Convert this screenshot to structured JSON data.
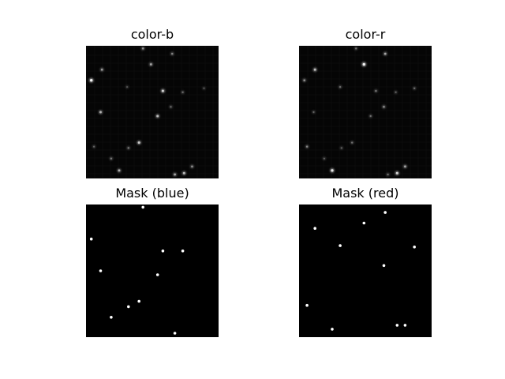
{
  "chart_data": [
    {
      "type": "image",
      "title": "color-b",
      "background": "#050505",
      "faint_grid": true,
      "spots": [
        {
          "x": 0.43,
          "y": 0.02,
          "v": 0.5
        },
        {
          "x": 0.65,
          "y": 0.06,
          "v": 0.45
        },
        {
          "x": 0.12,
          "y": 0.18,
          "v": 0.55
        },
        {
          "x": 0.49,
          "y": 0.14,
          "v": 0.6
        },
        {
          "x": 0.04,
          "y": 0.26,
          "v": 0.95
        },
        {
          "x": 0.31,
          "y": 0.31,
          "v": 0.25
        },
        {
          "x": 0.58,
          "y": 0.34,
          "v": 0.8
        },
        {
          "x": 0.73,
          "y": 0.35,
          "v": 0.35
        },
        {
          "x": 0.89,
          "y": 0.32,
          "v": 0.25
        },
        {
          "x": 0.11,
          "y": 0.5,
          "v": 0.65
        },
        {
          "x": 0.54,
          "y": 0.53,
          "v": 0.7
        },
        {
          "x": 0.64,
          "y": 0.46,
          "v": 0.35
        },
        {
          "x": 0.06,
          "y": 0.76,
          "v": 0.3
        },
        {
          "x": 0.32,
          "y": 0.77,
          "v": 0.4
        },
        {
          "x": 0.4,
          "y": 0.73,
          "v": 0.75
        },
        {
          "x": 0.19,
          "y": 0.85,
          "v": 0.4
        },
        {
          "x": 0.25,
          "y": 0.94,
          "v": 0.65
        },
        {
          "x": 0.67,
          "y": 0.97,
          "v": 0.6
        },
        {
          "x": 0.74,
          "y": 0.96,
          "v": 0.7
        },
        {
          "x": 0.8,
          "y": 0.91,
          "v": 0.5
        }
      ]
    },
    {
      "type": "image",
      "title": "color-r",
      "background": "#050505",
      "faint_grid": true,
      "spots": [
        {
          "x": 0.43,
          "y": 0.02,
          "v": 0.35
        },
        {
          "x": 0.65,
          "y": 0.06,
          "v": 0.6
        },
        {
          "x": 0.49,
          "y": 0.14,
          "v": 0.95
        },
        {
          "x": 0.12,
          "y": 0.18,
          "v": 0.7
        },
        {
          "x": 0.04,
          "y": 0.26,
          "v": 0.5
        },
        {
          "x": 0.31,
          "y": 0.31,
          "v": 0.35
        },
        {
          "x": 0.58,
          "y": 0.34,
          "v": 0.4
        },
        {
          "x": 0.73,
          "y": 0.35,
          "v": 0.3
        },
        {
          "x": 0.87,
          "y": 0.32,
          "v": 0.35
        },
        {
          "x": 0.11,
          "y": 0.5,
          "v": 0.3
        },
        {
          "x": 0.64,
          "y": 0.46,
          "v": 0.5
        },
        {
          "x": 0.54,
          "y": 0.53,
          "v": 0.35
        },
        {
          "x": 0.06,
          "y": 0.76,
          "v": 0.45
        },
        {
          "x": 0.32,
          "y": 0.77,
          "v": 0.3
        },
        {
          "x": 0.4,
          "y": 0.73,
          "v": 0.35
        },
        {
          "x": 0.19,
          "y": 0.85,
          "v": 0.3
        },
        {
          "x": 0.25,
          "y": 0.94,
          "v": 0.9
        },
        {
          "x": 0.67,
          "y": 0.97,
          "v": 0.35
        },
        {
          "x": 0.74,
          "y": 0.96,
          "v": 0.8
        },
        {
          "x": 0.8,
          "y": 0.91,
          "v": 0.6
        }
      ]
    },
    {
      "type": "image",
      "title": "Mask (blue)",
      "background": "#000000",
      "faint_grid": false,
      "spots": [
        {
          "x": 0.43,
          "y": 0.02,
          "v": 1
        },
        {
          "x": 0.04,
          "y": 0.26,
          "v": 1
        },
        {
          "x": 0.58,
          "y": 0.35,
          "v": 1
        },
        {
          "x": 0.73,
          "y": 0.35,
          "v": 1
        },
        {
          "x": 0.11,
          "y": 0.5,
          "v": 1
        },
        {
          "x": 0.54,
          "y": 0.53,
          "v": 1
        },
        {
          "x": 0.4,
          "y": 0.73,
          "v": 1
        },
        {
          "x": 0.32,
          "y": 0.77,
          "v": 1
        },
        {
          "x": 0.19,
          "y": 0.85,
          "v": 1
        },
        {
          "x": 0.67,
          "y": 0.97,
          "v": 1
        }
      ]
    },
    {
      "type": "image",
      "title": "Mask (red)",
      "background": "#000000",
      "faint_grid": false,
      "spots": [
        {
          "x": 0.65,
          "y": 0.06,
          "v": 1
        },
        {
          "x": 0.49,
          "y": 0.14,
          "v": 1
        },
        {
          "x": 0.12,
          "y": 0.18,
          "v": 1
        },
        {
          "x": 0.31,
          "y": 0.31,
          "v": 1
        },
        {
          "x": 0.87,
          "y": 0.32,
          "v": 1
        },
        {
          "x": 0.64,
          "y": 0.46,
          "v": 1
        },
        {
          "x": 0.06,
          "y": 0.76,
          "v": 1
        },
        {
          "x": 0.25,
          "y": 0.94,
          "v": 1
        },
        {
          "x": 0.74,
          "y": 0.91,
          "v": 1
        },
        {
          "x": 0.8,
          "y": 0.91,
          "v": 1
        }
      ]
    }
  ]
}
